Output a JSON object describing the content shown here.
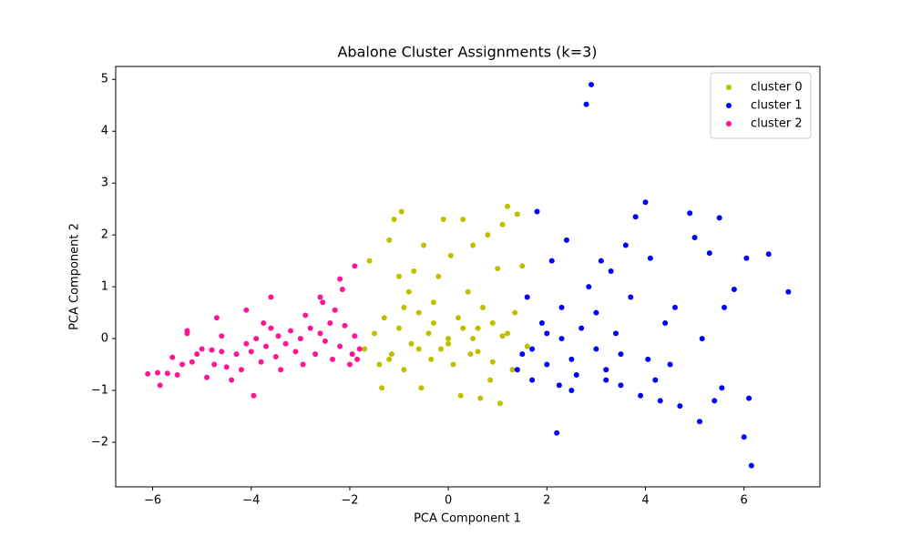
{
  "chart_data": {
    "type": "scatter",
    "title": "Abalone Cluster Assignments (k=3)",
    "x_label": "PCA Component 1",
    "y_label": "PCA Component 2",
    "xlim": [
      -6.75,
      7.54
    ],
    "ylim": [
      -2.86,
      5.25
    ],
    "xticks": [
      {
        "value": -6,
        "label": "−6"
      },
      {
        "value": -4,
        "label": "−4"
      },
      {
        "value": -2,
        "label": "−2"
      },
      0,
      2,
      4,
      6
    ],
    "yticks": [
      {
        "value": -2,
        "label": "−2"
      },
      {
        "value": -1,
        "label": "−1"
      },
      0,
      1,
      2,
      3,
      4,
      5
    ],
    "legend": "upper right",
    "series": [
      {
        "name": "cluster 0",
        "color": "#bfbf00",
        "x": [
          -1.7,
          -1.6,
          -1.5,
          -1.4,
          -1.35,
          -1.3,
          -1.2,
          -1.15,
          -1.1,
          -1.0,
          -0.95,
          -0.9,
          -0.8,
          -0.75,
          -0.7,
          -0.6,
          -0.55,
          -0.5,
          -0.4,
          -0.35,
          -0.3,
          -0.2,
          -0.15,
          -0.1,
          0.0,
          0.05,
          0.1,
          0.2,
          0.25,
          0.3,
          0.4,
          0.45,
          0.5,
          0.6,
          0.65,
          0.7,
          0.8,
          0.85,
          0.9,
          1.0,
          1.05,
          1.1,
          1.2,
          1.3,
          1.35,
          1.4,
          1.5,
          -1.2,
          -0.9,
          -0.6,
          -0.3,
          0.0,
          0.3,
          0.6,
          0.9,
          1.2,
          1.6,
          -1.0,
          0.5,
          1.1
        ],
        "y": [
          -0.2,
          1.5,
          0.1,
          -0.5,
          -0.95,
          0.4,
          1.9,
          -0.3,
          2.3,
          0.2,
          2.45,
          -0.6,
          0.9,
          -0.1,
          1.3,
          0.5,
          -0.95,
          1.8,
          0.1,
          -0.4,
          0.7,
          1.2,
          -0.2,
          2.3,
          0.0,
          1.6,
          -0.5,
          0.4,
          -1.1,
          2.3,
          0.9,
          -0.3,
          1.8,
          0.2,
          -1.15,
          0.6,
          2.0,
          -0.8,
          0.3,
          1.35,
          -1.25,
          0.05,
          2.55,
          -0.6,
          0.5,
          2.4,
          1.4,
          -0.4,
          0.6,
          -0.2,
          0.3,
          -0.1,
          0.2,
          -0.25,
          -0.45,
          0.1,
          -0.15,
          1.2,
          0.0,
          2.2
        ]
      },
      {
        "name": "cluster 1",
        "color": "#0000ff",
        "x": [
          1.4,
          1.5,
          1.6,
          1.7,
          1.8,
          1.9,
          2.0,
          2.1,
          2.2,
          2.25,
          2.3,
          2.4,
          2.5,
          2.6,
          2.7,
          2.8,
          2.85,
          2.9,
          3.0,
          3.1,
          3.2,
          3.3,
          3.4,
          3.5,
          3.6,
          3.7,
          3.8,
          3.9,
          4.0,
          4.05,
          4.1,
          4.2,
          4.3,
          4.4,
          4.5,
          4.7,
          4.9,
          5.0,
          5.1,
          5.15,
          5.3,
          5.4,
          5.5,
          5.55,
          5.6,
          5.8,
          6.0,
          6.05,
          6.1,
          6.15,
          6.5,
          6.9,
          2.0,
          2.5,
          3.0,
          3.5,
          1.7,
          2.3,
          3.2,
          4.6
        ],
        "y": [
          -0.6,
          -0.3,
          0.8,
          -0.8,
          2.45,
          0.3,
          -0.5,
          1.5,
          -1.82,
          -0.9,
          0.6,
          1.9,
          -0.4,
          -0.7,
          0.2,
          4.52,
          1.0,
          4.9,
          -0.2,
          1.5,
          -0.6,
          1.3,
          0.1,
          -0.9,
          1.8,
          0.8,
          2.35,
          -1.1,
          2.63,
          -0.4,
          1.55,
          -0.8,
          -1.2,
          0.3,
          -0.5,
          -1.3,
          2.42,
          1.95,
          -1.6,
          0.0,
          1.65,
          -1.2,
          2.33,
          -0.95,
          0.6,
          0.95,
          -1.9,
          1.55,
          -1.15,
          -2.45,
          1.63,
          0.9,
          0.1,
          -1.0,
          0.5,
          -0.3,
          -0.2,
          0.0,
          -0.8,
          0.6
        ]
      },
      {
        "name": "cluster 2",
        "color": "#ff1493",
        "x": [
          -6.1,
          -5.9,
          -5.85,
          -5.7,
          -5.6,
          -5.5,
          -5.4,
          -5.3,
          -5.2,
          -5.1,
          -5.0,
          -4.9,
          -4.8,
          -4.75,
          -4.7,
          -4.6,
          -4.5,
          -4.4,
          -4.3,
          -4.2,
          -4.1,
          -4.0,
          -3.95,
          -3.9,
          -3.8,
          -3.75,
          -3.7,
          -3.6,
          -3.5,
          -3.45,
          -3.4,
          -3.3,
          -3.2,
          -3.1,
          -3.0,
          -2.95,
          -2.9,
          -2.8,
          -2.7,
          -2.6,
          -2.55,
          -2.5,
          -2.4,
          -2.35,
          -2.3,
          -2.2,
          -2.15,
          -2.1,
          -2.0,
          -1.95,
          -1.9,
          -1.85,
          -1.8,
          -4.1,
          -3.6,
          -2.6,
          -2.2,
          -1.9,
          -4.6,
          -5.3
        ],
        "y": [
          -0.68,
          -0.66,
          -0.9,
          -0.67,
          -0.36,
          -0.7,
          -0.5,
          0.15,
          -0.45,
          -0.3,
          -0.2,
          -0.75,
          -0.22,
          -0.5,
          0.4,
          -0.25,
          -0.55,
          -0.8,
          -0.3,
          -0.6,
          -0.1,
          -0.25,
          -1.1,
          0.0,
          -0.45,
          0.3,
          -0.15,
          0.2,
          -0.35,
          0.05,
          -0.6,
          -0.1,
          0.15,
          -0.25,
          0.0,
          -0.5,
          0.45,
          0.2,
          -0.3,
          0.1,
          0.7,
          -0.05,
          0.3,
          -0.4,
          0.55,
          -0.15,
          0.95,
          0.25,
          -0.5,
          -0.3,
          0.05,
          -0.4,
          -0.2,
          0.55,
          0.8,
          0.8,
          1.15,
          1.4,
          0.05,
          0.1
        ]
      }
    ]
  }
}
